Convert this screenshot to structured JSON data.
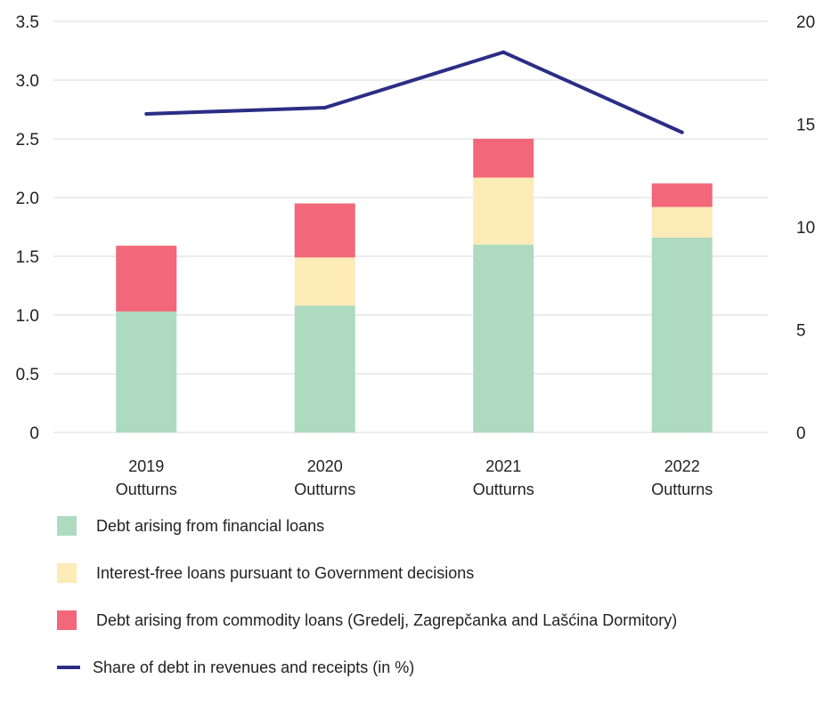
{
  "chart_data": {
    "type": "bar",
    "stacked": true,
    "categories": [
      "2019\nOutturns",
      "2020\nOutturns",
      "2021\nOutturns",
      "2022\nOutturns"
    ],
    "series": [
      {
        "name": "Debt arising from financial loans",
        "type": "bar",
        "color": "#aedbc0",
        "values": [
          1.03,
          1.08,
          1.6,
          1.66
        ]
      },
      {
        "name": "Interest-free loans pursuant to Government decisions",
        "type": "bar",
        "color": "#fdebb8",
        "values": [
          0,
          0.41,
          0.57,
          0.26
        ]
      },
      {
        "name": "Debt arising from commodity loans (Gredelj, Zagrepčanka and Lašćina Dormitory)",
        "type": "bar",
        "color": "#f2687a",
        "values": [
          0.56,
          0.46,
          0.33,
          0.2
        ]
      },
      {
        "name": "Share of debt in revenues and receipts (in %)",
        "type": "line",
        "axis": "right",
        "color": "#2b2d85",
        "values": [
          15.5,
          15.8,
          18.5,
          14.6
        ]
      }
    ],
    "left_axis": {
      "min": 0,
      "max": 3.5,
      "ticks": [
        "0",
        "0.5",
        "1.0",
        "1.5",
        "2.0",
        "2.5",
        "3.0",
        "3.5"
      ]
    },
    "right_axis": {
      "min": 0,
      "max": 20,
      "ticks": [
        "0",
        "5",
        "10",
        "15",
        "20"
      ]
    },
    "grid": true,
    "legend_position": "bottom"
  }
}
